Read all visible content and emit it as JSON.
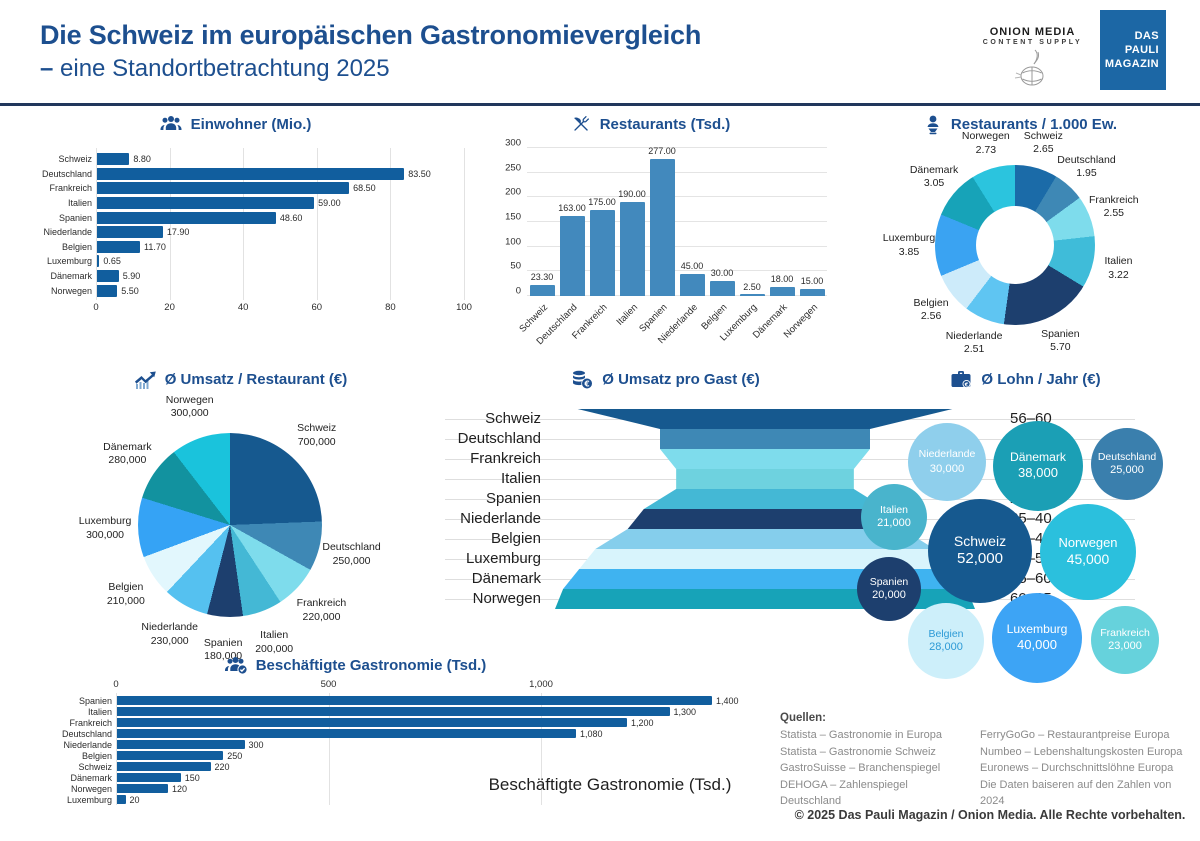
{
  "colors": {
    "accent": "#1D4F8F",
    "pauli_blue": "#1C67A5",
    "dark_bar": "#115E9E",
    "mid_bar": "#4289BD"
  },
  "header": {
    "title_line1": "Die Schweiz im europäischen Gastronomievergleich",
    "subtitle_dash": "–",
    "subtitle": "eine Standortbetrachtung 2025",
    "onion_logo": {
      "line1": "ONION MEDIA",
      "line2": "CONTENT SUPPLY"
    },
    "pauli_logo": {
      "line1": "DAS",
      "line2": "PAULI",
      "line3": "MAGAZIN"
    }
  },
  "chart_data": [
    {
      "id": "einwohner",
      "type": "hbar",
      "title": "Einwohner (Mio.)",
      "icon": "people-icon",
      "categories": [
        "Schweiz",
        "Deutschland",
        "Frankreich",
        "Italien",
        "Spanien",
        "Niederlande",
        "Belgien",
        "Luxemburg",
        "Dänemark",
        "Norwegen"
      ],
      "values": [
        8.8,
        83.5,
        68.5,
        59.0,
        48.6,
        17.9,
        11.7,
        0.65,
        5.9,
        5.5
      ],
      "value_labels": [
        "8.80",
        "83.50",
        "68.50",
        "59.00",
        "48.60",
        "17.90",
        "11.70",
        "0.65",
        "5.90",
        "5.50"
      ],
      "xlim": [
        0,
        100
      ],
      "grid": true,
      "ticks": [
        {
          "v": 0,
          "label": "0"
        },
        {
          "v": 20,
          "label": "20"
        },
        {
          "v": 40,
          "label": "40"
        },
        {
          "v": 60,
          "label": "60"
        },
        {
          "v": 80,
          "label": "80"
        },
        {
          "v": 100,
          "label": "100"
        }
      ],
      "bar_color": "#115E9E"
    },
    {
      "id": "restaurants",
      "type": "vbar",
      "title": "Restaurants (Tsd.)",
      "icon": "cutlery-icon",
      "categories": [
        "Schweiz",
        "Deutschland",
        "Frankreich",
        "Italien",
        "Spanien",
        "Niederlande",
        "Belgien",
        "Luxemburg",
        "Dänemark",
        "Norwegen"
      ],
      "values": [
        23.3,
        163,
        175,
        190,
        277,
        45,
        30,
        2.5,
        18,
        15
      ],
      "value_labels": [
        "23.30",
        "163.00",
        "175.00",
        "190.00",
        "277.00",
        "45.00",
        "30.00",
        "2.50",
        "18.00",
        "15.00"
      ],
      "ylim": [
        0,
        300
      ],
      "grid": true,
      "ticks": [
        {
          "v": 0,
          "label": "0"
        },
        {
          "v": 50,
          "label": "50"
        },
        {
          "v": 100,
          "label": "100"
        },
        {
          "v": 150,
          "label": "150"
        },
        {
          "v": 200,
          "label": "200"
        },
        {
          "v": 250,
          "label": "250"
        },
        {
          "v": 300,
          "label": "300"
        }
      ],
      "bar_color": "#4289BD"
    },
    {
      "id": "restaurants_pro_1000_ew",
      "type": "donut",
      "title": "Restaurants / 1.000 Ew.",
      "icon": "pin-icon",
      "labels": [
        "Schweiz",
        "Deutschland",
        "Frankreich",
        "Italien",
        "Spanien",
        "Niederlande",
        "Belgien",
        "Luxemburg",
        "Dänemark",
        "Norwegen"
      ],
      "values": [
        2.65,
        1.95,
        2.55,
        3.22,
        5.7,
        2.51,
        2.56,
        3.85,
        3.05,
        2.73
      ],
      "value_labels": [
        "2.65",
        "1.95",
        "2.55",
        "3.22",
        "5.70",
        "2.51",
        "2.56",
        "3.85",
        "3.05",
        "2.73"
      ],
      "colors": [
        "#1B6BA8",
        "#3E88B5",
        "#7EDCEC",
        "#3FBCD9",
        "#1D3F6E",
        "#5FC5F2",
        "#CDEBFA",
        "#3AA3F2",
        "#17A3B8",
        "#2BC4DE"
      ],
      "start_angle_deg": 0,
      "direction": "clockwise"
    },
    {
      "id": "umsatz_pro_restaurant",
      "type": "pie",
      "title": "Ø Umsatz / Restaurant (€)",
      "icon": "trend-icon",
      "labels": [
        "Schweiz",
        "Deutschland",
        "Frankreich",
        "Italien",
        "Spanien",
        "Niederlande",
        "Belgien",
        "Luxemburg",
        "Dänemark",
        "Norwegen"
      ],
      "values": [
        700000,
        250000,
        220000,
        200000,
        180000,
        230000,
        210000,
        300000,
        280000,
        300000
      ],
      "value_labels": [
        "700,000",
        "250,000",
        "220,000",
        "200,000",
        "180,000",
        "230,000",
        "210,000",
        "300,000",
        "280,000",
        "300,000"
      ],
      "colors": [
        "#16598F",
        "#3E88B5",
        "#7EDCEC",
        "#44B8D5",
        "#1D3F6E",
        "#55C1F0",
        "#E2F7FD",
        "#35A3F5",
        "#12929F",
        "#1AC3DC"
      ],
      "start_angle_deg": 0,
      "direction": "clockwise"
    },
    {
      "id": "umsatz_pro_gast",
      "type": "funnel",
      "title": "Ø Umsatz pro Gast (€)",
      "icon": "coins-icon",
      "labels": [
        "Schweiz",
        "Deutschland",
        "Frankreich",
        "Italien",
        "Spanien",
        "Niederlande",
        "Belgien",
        "Luxemburg",
        "Dänemark",
        "Norwegen"
      ],
      "ranges": [
        "56–60",
        "30–35",
        "30–35",
        "25–30",
        "25–30",
        "35–40",
        "40–45",
        "50–55",
        "55–60",
        "60–65"
      ],
      "mid_values": [
        58,
        32.5,
        32.5,
        27.5,
        27.5,
        37.5,
        42.5,
        52.5,
        57.5,
        62.5
      ],
      "max_value": 65,
      "colors": [
        "#16598F",
        "#3E88B5",
        "#7EDCEC",
        "#6ED2DF",
        "#44B8D5",
        "#1D3F6E",
        "#85CEEC",
        "#D8F4FC",
        "#3FB3F0",
        "#17A3B8"
      ]
    },
    {
      "id": "lohn_pro_jahr",
      "type": "bubble",
      "title": "Ø Lohn / Jahr (€)",
      "icon": "briefcase-icon",
      "items": [
        {
          "name": "Niederlande",
          "value": 30000,
          "value_label": "30,000",
          "color": "#8FCFEC",
          "text_color": "#FFFFFF",
          "x": 97,
          "y": 97,
          "r": 39
        },
        {
          "name": "Dänemark",
          "value": 38000,
          "value_label": "38,000",
          "color": "#1B9FB5",
          "text_color": "#FFFFFF",
          "x": 188,
          "y": 101,
          "r": 45
        },
        {
          "name": "Deutschland",
          "value": 25000,
          "value_label": "25,000",
          "color": "#3A7FAD",
          "text_color": "#FFFFFF",
          "x": 277,
          "y": 99,
          "r": 36
        },
        {
          "name": "Italien",
          "value": 21000,
          "value_label": "21,000",
          "color": "#49B4CC",
          "text_color": "#FFFFFF",
          "x": 44,
          "y": 152,
          "r": 33
        },
        {
          "name": "Schweiz",
          "value": 52000,
          "value_label": "52,000",
          "color": "#16598F",
          "text_color": "#FFFFFF",
          "x": 130,
          "y": 186,
          "r": 52
        },
        {
          "name": "Norwegen",
          "value": 45000,
          "value_label": "45,000",
          "color": "#2BC0DD",
          "text_color": "#FFFFFF",
          "x": 238,
          "y": 187,
          "r": 48
        },
        {
          "name": "Spanien",
          "value": 20000,
          "value_label": "20,000",
          "color": "#1D3F6E",
          "text_color": "#FFFFFF",
          "x": 39,
          "y": 224,
          "r": 32
        },
        {
          "name": "Belgien",
          "value": 28000,
          "value_label": "28,000",
          "color": "#CDEFFA",
          "text_color": "#2D9AD6",
          "x": 96,
          "y": 276,
          "r": 38
        },
        {
          "name": "Luxemburg",
          "value": 40000,
          "value_label": "40,000",
          "color": "#3DA4F5",
          "text_color": "#FFFFFF",
          "x": 187,
          "y": 273,
          "r": 45
        },
        {
          "name": "Frankreich",
          "value": 23000,
          "value_label": "23,000",
          "color": "#66D2DC",
          "text_color": "#FFFFFF",
          "x": 275,
          "y": 275,
          "r": 34
        }
      ]
    },
    {
      "id": "beschaeftigte",
      "type": "hbar",
      "title": "Beschäftigte Gastronomie (Tsd.)",
      "icon": "staff-icon",
      "categories": [
        "Spanien",
        "Italien",
        "Frankreich",
        "Deutschland",
        "Niederlande",
        "Belgien",
        "Schweiz",
        "Dänemark",
        "Norwegen",
        "Luxemburg"
      ],
      "values": [
        1400,
        1300,
        1200,
        1080,
        300,
        250,
        220,
        150,
        120,
        20
      ],
      "value_labels": [
        "1,400",
        "1,300",
        "1,200",
        "1,080",
        "300",
        "250",
        "220",
        "150",
        "120",
        "20"
      ],
      "xlim": [
        0,
        1400
      ],
      "grid": true,
      "axis_position": "top",
      "ticks": [
        {
          "v": 0,
          "label": "0"
        },
        {
          "v": 500,
          "label": "500"
        },
        {
          "v": 1000,
          "label": "1,000"
        }
      ],
      "bar_color": "#115E9E",
      "inner_label": "Beschäftigte Gastronomie (Tsd.)"
    }
  ],
  "sources": {
    "heading": "Quellen:",
    "col1": [
      "Statista – Gastronomie in Europa",
      "Statista – Gastronomie Schweiz",
      "GastroSuisse – Branchenspiegel",
      "DEHOGA – Zahlenspiegel Deutschland"
    ],
    "col2": [
      "FerryGoGo – Restaurantpreise Europa",
      "Numbeo – Lebenshaltungskosten Europa",
      "Euronews – Durchschnittslöhne Europa",
      "Die Daten baiseren auf den Zahlen von 2024"
    ]
  },
  "footer": "© 2025 Das Pauli Magazin / Onion Media. Alle Rechte vorbehalten."
}
